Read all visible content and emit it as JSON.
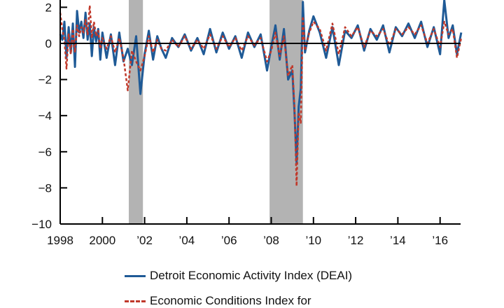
{
  "chart_data": {
    "type": "line",
    "title": "",
    "xlabel": "",
    "ylabel": "",
    "xlim": [
      1998,
      2017.0
    ],
    "ylim": [
      -10,
      2.2
    ],
    "grid": false,
    "y_ticks": [
      2,
      0,
      -2,
      -4,
      -6,
      -8,
      -10
    ],
    "y_tick_labels": [
      "2",
      "0",
      "−2",
      "−4",
      "−6",
      "−8",
      "−10"
    ],
    "x_ticks": [
      1998,
      2000,
      2002,
      2004,
      2006,
      2008,
      2010,
      2012,
      2014,
      2016
    ],
    "x_tick_labels": [
      "1998",
      "2000",
      "’02",
      "’04",
      "’06",
      "’08",
      "’10",
      "’12",
      "’14",
      "’16"
    ],
    "recessions": [
      [
        2001.25,
        2001.92
      ],
      [
        2007.92,
        2009.5
      ]
    ],
    "legend_position": "bottom",
    "colors": {
      "deai": "#1f5a96",
      "eci": "#c0392b",
      "recession": "#b3b3b3",
      "axis": "#000000"
    },
    "series": [
      {
        "name": "Detroit Economic Activity Index (DEAI)",
        "style": "solid",
        "x": [
          1998.0,
          1998.1,
          1998.2,
          1998.3,
          1998.4,
          1998.5,
          1998.6,
          1998.7,
          1998.8,
          1998.9,
          1999.0,
          1999.1,
          1999.2,
          1999.3,
          1999.4,
          1999.5,
          1999.6,
          1999.7,
          1999.8,
          1999.9,
          2000.0,
          2000.2,
          2000.4,
          2000.6,
          2000.8,
          2001.0,
          2001.2,
          2001.4,
          2001.6,
          2001.8,
          2002.0,
          2002.2,
          2002.4,
          2002.6,
          2002.8,
          2003.0,
          2003.3,
          2003.6,
          2003.9,
          2004.2,
          2004.5,
          2004.8,
          2005.1,
          2005.4,
          2005.7,
          2006.0,
          2006.3,
          2006.6,
          2006.9,
          2007.2,
          2007.5,
          2007.8,
          2008.0,
          2008.2,
          2008.4,
          2008.6,
          2008.8,
          2009.0,
          2009.1,
          2009.2,
          2009.3,
          2009.4,
          2009.5,
          2009.6,
          2009.8,
          2010.0,
          2010.3,
          2010.6,
          2010.9,
          2011.2,
          2011.5,
          2011.8,
          2012.1,
          2012.4,
          2012.7,
          2013.0,
          2013.3,
          2013.6,
          2013.9,
          2014.2,
          2014.5,
          2014.8,
          2015.1,
          2015.4,
          2015.7,
          2016.0,
          2016.2,
          2016.4,
          2016.6,
          2016.8,
          2017.0
        ],
        "y": [
          0.5,
          0.2,
          1.2,
          -0.8,
          0.9,
          -0.5,
          1.1,
          -1.3,
          1.8,
          0.6,
          1.2,
          0.3,
          1.7,
          0.2,
          1.1,
          -0.7,
          0.9,
          0.1,
          0.8,
          -0.9,
          0.6,
          -0.8,
          0.5,
          -1.2,
          0.6,
          -1.0,
          -0.3,
          -1.2,
          0.4,
          -2.8,
          -0.6,
          0.7,
          -0.9,
          0.4,
          -0.3,
          -0.8,
          0.3,
          -0.2,
          0.5,
          -0.4,
          0.3,
          -0.6,
          0.8,
          -0.5,
          0.6,
          -0.3,
          0.4,
          -0.8,
          0.6,
          -0.2,
          0.5,
          -1.5,
          -0.2,
          1.0,
          -0.9,
          0.8,
          -2.0,
          -1.5,
          -3.8,
          -6.6,
          -3.5,
          -2.5,
          2.3,
          -0.5,
          0.7,
          1.5,
          0.6,
          -0.8,
          0.9,
          -1.2,
          0.7,
          0.3,
          1.0,
          -0.4,
          0.8,
          0.2,
          1.0,
          -0.5,
          0.9,
          0.4,
          1.1,
          0.3,
          1.2,
          -0.2,
          0.9,
          -0.6,
          2.4,
          0.3,
          1.0,
          -0.6,
          0.6
        ]
      },
      {
        "name": "Economic Conditions Index for",
        "style": "dashed",
        "x": [
          1998.0,
          1998.1,
          1998.2,
          1998.3,
          1998.4,
          1998.5,
          1998.6,
          1998.7,
          1998.8,
          1998.9,
          1999.0,
          1999.1,
          1999.2,
          1999.3,
          1999.4,
          1999.5,
          1999.6,
          1999.7,
          1999.8,
          1999.9,
          2000.0,
          2000.2,
          2000.4,
          2000.6,
          2000.8,
          2001.0,
          2001.2,
          2001.4,
          2001.6,
          2001.8,
          2002.0,
          2002.2,
          2002.4,
          2002.6,
          2002.8,
          2003.0,
          2003.3,
          2003.6,
          2003.9,
          2004.2,
          2004.5,
          2004.8,
          2005.1,
          2005.4,
          2005.7,
          2006.0,
          2006.3,
          2006.6,
          2006.9,
          2007.2,
          2007.5,
          2007.8,
          2008.0,
          2008.2,
          2008.4,
          2008.6,
          2008.8,
          2009.0,
          2009.1,
          2009.2,
          2009.3,
          2009.4,
          2009.5,
          2009.6,
          2009.8,
          2010.0,
          2010.3,
          2010.6,
          2010.9,
          2011.2,
          2011.5,
          2011.8,
          2012.1,
          2012.4,
          2012.7,
          2013.0,
          2013.3,
          2013.6,
          2013.9,
          2014.2,
          2014.5,
          2014.8,
          2015.1,
          2015.4,
          2015.7,
          2016.0,
          2016.2,
          2016.4,
          2016.6,
          2016.8,
          2017.0
        ],
        "y": [
          1.7,
          0.8,
          0.2,
          -1.4,
          0.5,
          -0.6,
          0.8,
          -0.5,
          1.0,
          0.4,
          0.9,
          0.6,
          1.3,
          0.5,
          2.1,
          0.3,
          1.2,
          0.4,
          0.7,
          -0.3,
          0.3,
          -0.3,
          0.4,
          -0.5,
          0.3,
          -0.8,
          -2.6,
          -0.4,
          -1.0,
          -1.5,
          -0.7,
          0.4,
          -0.5,
          0.2,
          -0.3,
          -0.4,
          0.2,
          -0.2,
          0.4,
          -0.3,
          0.2,
          -0.3,
          0.5,
          -0.3,
          0.4,
          -0.2,
          0.3,
          -0.4,
          0.4,
          -0.1,
          0.3,
          -1.0,
          -0.4,
          0.6,
          -0.7,
          0.4,
          -1.8,
          -1.2,
          -3.5,
          -7.9,
          -3.8,
          -4.4,
          1.5,
          -0.4,
          0.6,
          1.2,
          0.8,
          -0.4,
          1.1,
          -0.6,
          0.9,
          0.4,
          0.9,
          -0.2,
          0.7,
          0.4,
          0.8,
          -0.1,
          0.8,
          0.5,
          0.9,
          0.5,
          1.0,
          0.0,
          0.8,
          -0.2,
          1.2,
          0.5,
          0.8,
          -0.8,
          0.3
        ]
      }
    ]
  },
  "legend": {
    "items": [
      {
        "label": "Detroit Economic Activity Index (DEAI)"
      },
      {
        "label": "Economic Conditions Index for"
      }
    ]
  }
}
